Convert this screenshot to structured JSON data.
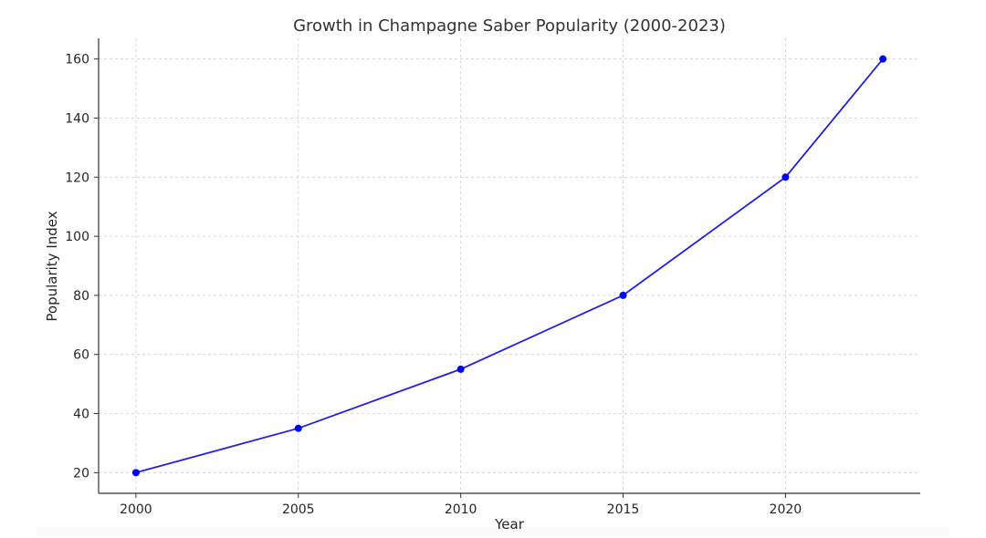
{
  "chart_data": {
    "type": "line",
    "title": "Growth in Champagne Saber Popularity (2000-2023)",
    "xlabel": "Year",
    "ylabel": "Popularity Index",
    "x": [
      2000,
      2005,
      2010,
      2015,
      2020,
      2023
    ],
    "series": [
      {
        "values": [
          20,
          35,
          55,
          80,
          120,
          160
        ]
      }
    ],
    "xlim": [
      1998.85,
      2024.15
    ],
    "ylim": [
      13,
      167
    ],
    "xticks": [
      2000,
      2005,
      2010,
      2015,
      2020
    ],
    "yticks": [
      20,
      40,
      60,
      80,
      100,
      120,
      140,
      160
    ],
    "grid": true,
    "line_color": "#1f1fe6",
    "marker_color": "#0000ff",
    "grid_color": "#cfcfcf",
    "axis_color": "#333333"
  }
}
